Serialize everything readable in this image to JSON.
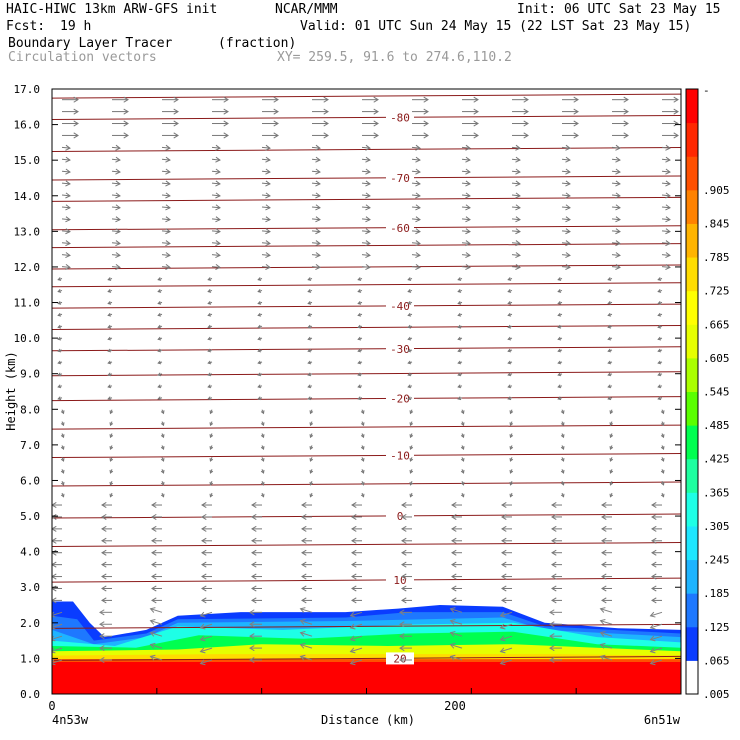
{
  "header": {
    "model": "HAIC-HIWC 13km ARW-GFS init",
    "org": "NCAR/MMM",
    "init": "Init: 06 UTC Sat 23 May 15",
    "fcst_label": "Fcst:",
    "fcst_value": "19 h",
    "valid": "Valid: 01 UTC Sun 24 May 15 (22 LST Sat 23 May 15)",
    "field": "Boundary Layer Tracer",
    "units": "(fraction)",
    "vectors": "Circulation vectors",
    "xy": "XY= 259.5, 91.6 to 274.6,110.2"
  },
  "chart_data": {
    "type": "heatmap",
    "xlabel": "Distance (km)",
    "ylabel": "Height (km)",
    "xlim": [
      0,
      300
    ],
    "ylim": [
      0,
      17
    ],
    "yticks": [
      "0.0",
      "1.0",
      "2.0",
      "3.0",
      "4.0",
      "5.0",
      "6.0",
      "7.0",
      "8.0",
      "9.0",
      "10.0",
      "11.0",
      "12.0",
      "13.0",
      "14.0",
      "15.0",
      "16.0",
      "17.0"
    ],
    "xtick_center": "200",
    "xtick_left": "0",
    "left_location": "4n53w",
    "right_location": "6n51w",
    "colorbar": {
      "labels": [
        ".005",
        ".065",
        ".125",
        ".185",
        ".245",
        ".305",
        ".365",
        ".425",
        ".485",
        ".545",
        ".605",
        ".665",
        ".725",
        ".785",
        ".845",
        ".905"
      ],
      "top_label": "-",
      "colors": [
        "#ffffff",
        "#0a3cff",
        "#1e78ff",
        "#1eb4ff",
        "#1ee6ff",
        "#1effe6",
        "#1effa0",
        "#00ff50",
        "#5aff00",
        "#aaff00",
        "#e6ff00",
        "#ffff00",
        "#ffdc00",
        "#ffb400",
        "#ff8200",
        "#ff5000",
        "#ff2800",
        "#ff0000"
      ]
    },
    "temperature_contours": [
      {
        "label": "-80",
        "height_km": 16.2
      },
      {
        "label": "-70",
        "height_km": 14.5
      },
      {
        "label": "-60",
        "height_km": 13.1
      },
      {
        "label": "-40",
        "height_km": 10.9
      },
      {
        "label": "-30",
        "height_km": 9.7
      },
      {
        "label": "-20",
        "height_km": 8.3
      },
      {
        "label": "-10",
        "height_km": 6.7
      },
      {
        "label": "0",
        "height_km": 5.0
      },
      {
        "label": "10",
        "height_km": 3.2
      },
      {
        "label": "20",
        "height_km": 1.0
      }
    ]
  }
}
